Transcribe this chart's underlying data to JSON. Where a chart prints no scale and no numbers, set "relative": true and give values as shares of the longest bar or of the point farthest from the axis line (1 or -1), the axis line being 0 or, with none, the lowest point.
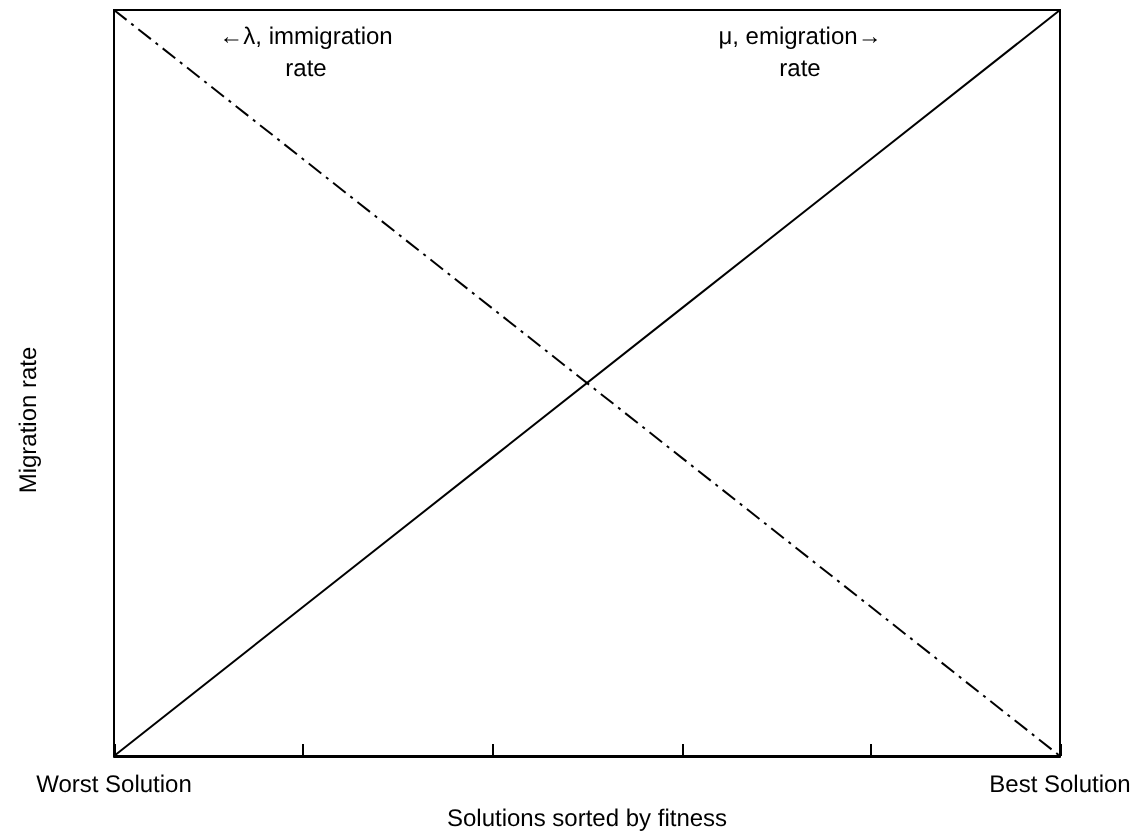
{
  "chart_data": {
    "type": "line",
    "relative": true,
    "xlabel": "Solutions sorted by fitness",
    "ylabel": "Migration rate",
    "categories": [
      "Worst Solution",
      null,
      null,
      null,
      null,
      "Best Solution"
    ],
    "series": [
      {
        "color": "#000000",
        "line_style": "solid",
        "values": [
          0,
          0.2,
          0.4,
          0.6,
          0.8,
          1
        ]
      },
      {
        "color": "#000000",
        "line_style": "dashed",
        "values": [
          1,
          0.8,
          0.6,
          0.4,
          0.2,
          0
        ]
      }
    ],
    "annotations": [
      "←λ, immigration\nrate",
      "μ, emigration→\nrate"
    ],
    "marker": "none"
  }
}
